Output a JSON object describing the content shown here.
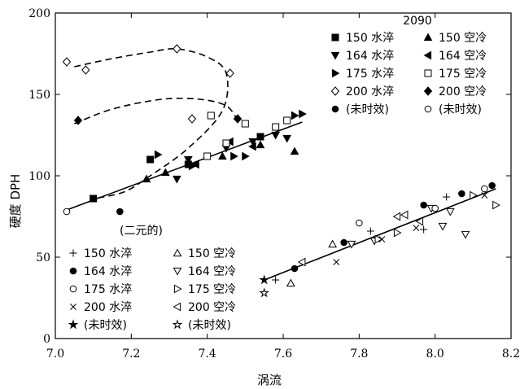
{
  "chart_data": {
    "type": "scatter",
    "title": "",
    "xlabel": "涡流",
    "ylabel": "硬度  DPH",
    "xlim": [
      7.0,
      8.2
    ],
    "ylim": [
      0,
      200
    ],
    "xticks": [
      "7.0",
      "7.2",
      "7.4",
      "7.6",
      "7.8",
      "8.0",
      "8.2"
    ],
    "yticks": [
      "0",
      "50",
      "100",
      "150",
      "200"
    ],
    "grid": false,
    "legends": [
      {
        "title": "2090",
        "placement": "top-right",
        "entries": [
          {
            "marker": "square-filled",
            "label": "150 水淬"
          },
          {
            "marker": "triangle-up-filled",
            "label": "150 空冷"
          },
          {
            "marker": "triangle-down-filled",
            "label": "164 水淬"
          },
          {
            "marker": "triangle-left-filled",
            "label": "164 空冷"
          },
          {
            "marker": "triangle-right-filled",
            "label": "175 水淬"
          },
          {
            "marker": "square-open",
            "label": "175 空冷"
          },
          {
            "marker": "diamond-open",
            "label": "200 水淬"
          },
          {
            "marker": "diamond-filled",
            "label": "200 空冷"
          },
          {
            "marker": "circle-filled",
            "label": "(未时效)"
          },
          {
            "marker": "circle-open",
            "label": "(未时效)"
          }
        ]
      },
      {
        "title": "(二元的)",
        "placement": "bottom-left",
        "entries": [
          {
            "marker": "plus",
            "label": "150 水淬"
          },
          {
            "marker": "triangle-up-open",
            "label": "150 空冷"
          },
          {
            "marker": "circle-filled",
            "label": "164 水淬"
          },
          {
            "marker": "triangle-down-open",
            "label": "164 空冷"
          },
          {
            "marker": "circle-open",
            "label": "175 水淬"
          },
          {
            "marker": "triangle-right-open",
            "label": "175 空冷"
          },
          {
            "marker": "cross",
            "label": "200 水淬"
          },
          {
            "marker": "triangle-left-open",
            "label": "200 空冷"
          },
          {
            "marker": "star-filled",
            "label": "(未时效)"
          },
          {
            "marker": "star-open",
            "label": "(未时效)"
          }
        ]
      }
    ],
    "fit_lines": [
      {
        "group": "2090",
        "x": [
          7.03,
          7.65
        ],
        "y": [
          79,
          133
        ]
      },
      {
        "group": "二元的",
        "x": [
          7.55,
          8.16
        ],
        "y": [
          36,
          92
        ]
      }
    ],
    "dashed_curves": [
      {
        "group": "2090",
        "x": [
          7.05,
          7.15,
          7.25,
          7.32,
          7.4,
          7.45,
          7.44,
          7.35,
          7.25,
          7.18,
          7.1
        ],
        "y": [
          167,
          172,
          176,
          178,
          173,
          163,
          140,
          117,
          100,
          90,
          86
        ]
      },
      {
        "group": "2090",
        "x": [
          7.05,
          7.15,
          7.28,
          7.38,
          7.45,
          7.48
        ],
        "y": [
          132,
          141,
          147,
          147,
          143,
          134
        ]
      }
    ],
    "series": [
      {
        "group": "2090",
        "marker": "square-filled",
        "points": [
          [
            7.1,
            86
          ],
          [
            7.25,
            110
          ],
          [
            7.35,
            107
          ],
          [
            7.54,
            124
          ]
        ]
      },
      {
        "group": "2090",
        "marker": "triangle-up-filled",
        "points": [
          [
            7.24,
            98
          ],
          [
            7.29,
            102
          ],
          [
            7.44,
            112
          ],
          [
            7.54,
            119
          ],
          [
            7.63,
            115
          ]
        ]
      },
      {
        "group": "2090",
        "marker": "triangle-down-filled",
        "points": [
          [
            7.32,
            98
          ],
          [
            7.35,
            110
          ],
          [
            7.45,
            117
          ],
          [
            7.52,
            121
          ],
          [
            7.58,
            125
          ],
          [
            7.61,
            123
          ]
        ]
      },
      {
        "group": "2090",
        "marker": "triangle-left-filled",
        "points": [
          [
            7.37,
            107
          ],
          [
            7.46,
            121
          ],
          [
            7.52,
            118
          ]
        ]
      },
      {
        "group": "2090",
        "marker": "triangle-right-filled",
        "points": [
          [
            7.27,
            113
          ],
          [
            7.36,
            106
          ],
          [
            7.47,
            112
          ],
          [
            7.5,
            112
          ],
          [
            7.63,
            137
          ],
          [
            7.65,
            138
          ]
        ]
      },
      {
        "group": "2090",
        "marker": "square-open",
        "points": [
          [
            7.4,
            112
          ],
          [
            7.41,
            137
          ],
          [
            7.45,
            120
          ],
          [
            7.5,
            132
          ],
          [
            7.58,
            130
          ],
          [
            7.61,
            134
          ]
        ]
      },
      {
        "group": "2090",
        "marker": "diamond-open",
        "points": [
          [
            7.03,
            170
          ],
          [
            7.08,
            165
          ],
          [
            7.32,
            178
          ],
          [
            7.36,
            135
          ],
          [
            7.46,
            163
          ]
        ]
      },
      {
        "group": "2090",
        "marker": "diamond-filled",
        "points": [
          [
            7.06,
            134
          ],
          [
            7.48,
            135
          ]
        ]
      },
      {
        "group": "2090",
        "marker": "circle-filled",
        "points": [
          [
            7.17,
            78
          ]
        ]
      },
      {
        "group": "2090",
        "marker": "circle-open",
        "points": [
          [
            7.03,
            78
          ]
        ]
      },
      {
        "group": "二元的",
        "marker": "plus",
        "points": [
          [
            7.58,
            36
          ],
          [
            7.83,
            66
          ],
          [
            7.97,
            67
          ],
          [
            8.03,
            87
          ]
        ]
      },
      {
        "group": "二元的",
        "marker": "triangle-up-open",
        "points": [
          [
            7.62,
            34
          ],
          [
            7.73,
            58
          ]
        ]
      },
      {
        "group": "二元的",
        "marker": "circle-filled",
        "points": [
          [
            7.63,
            43
          ],
          [
            7.76,
            59
          ],
          [
            7.97,
            82
          ],
          [
            8.07,
            89
          ],
          [
            8.15,
            94
          ]
        ]
      },
      {
        "group": "二元的",
        "marker": "triangle-down-open",
        "points": [
          [
            7.78,
            58
          ],
          [
            7.84,
            60
          ],
          [
            7.99,
            80
          ],
          [
            8.02,
            69
          ],
          [
            8.04,
            78
          ],
          [
            8.08,
            64
          ]
        ]
      },
      {
        "group": "二元的",
        "marker": "circle-open",
        "points": [
          [
            7.8,
            71
          ],
          [
            8.0,
            80
          ],
          [
            8.13,
            92
          ]
        ]
      },
      {
        "group": "二元的",
        "marker": "triangle-right-open",
        "points": [
          [
            7.85,
            61
          ],
          [
            7.9,
            65
          ],
          [
            8.1,
            88
          ],
          [
            8.16,
            82
          ]
        ]
      },
      {
        "group": "二元的",
        "marker": "cross",
        "points": [
          [
            7.74,
            47
          ],
          [
            7.86,
            61
          ],
          [
            7.95,
            68
          ],
          [
            8.13,
            88
          ]
        ]
      },
      {
        "group": "二元的",
        "marker": "triangle-left-open",
        "points": [
          [
            7.65,
            47
          ],
          [
            7.9,
            75
          ],
          [
            7.92,
            76
          ],
          [
            7.96,
            72
          ]
        ]
      },
      {
        "group": "二元的",
        "marker": "star-filled",
        "points": [
          [
            7.55,
            36
          ]
        ]
      },
      {
        "group": "二元的",
        "marker": "star-open",
        "points": [
          [
            7.55,
            28
          ]
        ]
      }
    ]
  }
}
